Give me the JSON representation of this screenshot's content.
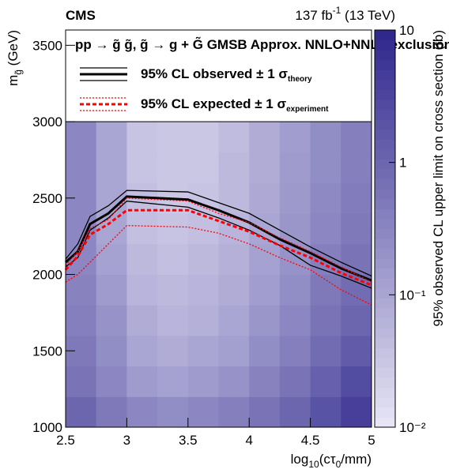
{
  "chart_data": {
    "type": "heatmap",
    "experiment": "CMS",
    "lumi_label": [
      "137 fb",
      "-1",
      " (13 TeV)"
    ],
    "x_label": [
      "log",
      "10",
      "(cτ",
      "0",
      "/mm)"
    ],
    "y_label": [
      "m",
      "g̃",
      " (GeV)"
    ],
    "z_label": "95% observed CL upper limit on cross section (fb)",
    "legend_title": "pp → g̃ g̃, g̃ → g + G̃  GMSB Approx. NNLO+NNLL exclusion",
    "xlim": [
      2.5,
      5
    ],
    "xticks": [
      2.5,
      3,
      3.5,
      4,
      4.5,
      5
    ],
    "ylim": [
      1000,
      3600
    ],
    "yticks": [
      1000,
      1500,
      2000,
      2500,
      3000,
      3500
    ],
    "zlim": [
      0.01,
      10
    ],
    "zlog": true,
    "zticks": [
      {
        "value": 0.01,
        "label": "10⁻²"
      },
      {
        "value": 0.1,
        "label": "10⁻¹"
      },
      1,
      10
    ],
    "heatmap": {
      "x_edges": [
        2.5,
        2.75,
        3,
        3.25,
        3.5,
        3.75,
        4,
        4.25,
        4.5,
        4.75,
        5
      ],
      "y_edges": [
        1000,
        1200,
        1400,
        1600,
        1800,
        2000,
        2200,
        2400,
        2600,
        2800,
        3000
      ],
      "z": [
        [
          1.0,
          0.5,
          0.3,
          0.25,
          0.3,
          0.4,
          0.6,
          1.0,
          2,
          4
        ],
        [
          0.6,
          0.3,
          0.15,
          0.12,
          0.15,
          0.2,
          0.35,
          0.6,
          1.2,
          2.5
        ],
        [
          0.5,
          0.25,
          0.1,
          0.08,
          0.1,
          0.13,
          0.25,
          0.4,
          0.8,
          1.5
        ],
        [
          0.4,
          0.2,
          0.08,
          0.06,
          0.07,
          0.1,
          0.18,
          0.3,
          0.6,
          1.0
        ],
        [
          0.35,
          0.15,
          0.06,
          0.05,
          0.06,
          0.08,
          0.14,
          0.25,
          0.5,
          0.8
        ],
        [
          0.3,
          0.12,
          0.05,
          0.04,
          0.05,
          0.07,
          0.12,
          0.2,
          0.4,
          0.6
        ],
        [
          0.3,
          0.1,
          0.04,
          0.035,
          0.04,
          0.06,
          0.1,
          0.18,
          0.3,
          0.5
        ],
        [
          0.3,
          0.1,
          0.04,
          0.03,
          0.035,
          0.05,
          0.09,
          0.16,
          0.28,
          0.45
        ],
        [
          0.3,
          0.1,
          0.035,
          0.03,
          0.03,
          0.05,
          0.08,
          0.15,
          0.25,
          0.4
        ],
        [
          0.3,
          0.1,
          0.035,
          0.03,
          0.03,
          0.045,
          0.08,
          0.14,
          0.25,
          0.4
        ]
      ]
    },
    "x": [
      2.5,
      2.6,
      2.7,
      2.85,
      3.0,
      3.5,
      3.75,
      4.0,
      4.25,
      4.5,
      4.75,
      5.0
    ],
    "series": [
      {
        "name": [
          "95% CL observed ± 1 σ",
          "theory"
        ],
        "color": "#000000",
        "dash": "solid",
        "values": [
          2080,
          2150,
          2330,
          2400,
          2510,
          2490,
          2420,
          2340,
          2230,
          2140,
          2040,
          1960
        ],
        "upper": [
          2100,
          2200,
          2380,
          2450,
          2550,
          2540,
          2470,
          2400,
          2290,
          2180,
          2080,
          1990
        ],
        "lower": [
          2050,
          2110,
          2290,
          2370,
          2480,
          2440,
          2370,
          2290,
          2190,
          2060,
          1990,
          1910
        ]
      },
      {
        "name": [
          "95% CL expected ± 1 σ",
          "experiment"
        ],
        "color": "#ff0000",
        "dash": "dashed",
        "values": [
          2030,
          2120,
          2260,
          2330,
          2420,
          2420,
          2350,
          2280,
          2190,
          2110,
          2010,
          1930
        ],
        "upper": [
          2060,
          2150,
          2300,
          2360,
          2500,
          2480,
          2400,
          2340,
          2240,
          2150,
          2050,
          1950
        ],
        "lower": [
          1950,
          2000,
          2080,
          2200,
          2320,
          2310,
          2270,
          2200,
          2110,
          2030,
          1900,
          1800
        ]
      }
    ]
  }
}
